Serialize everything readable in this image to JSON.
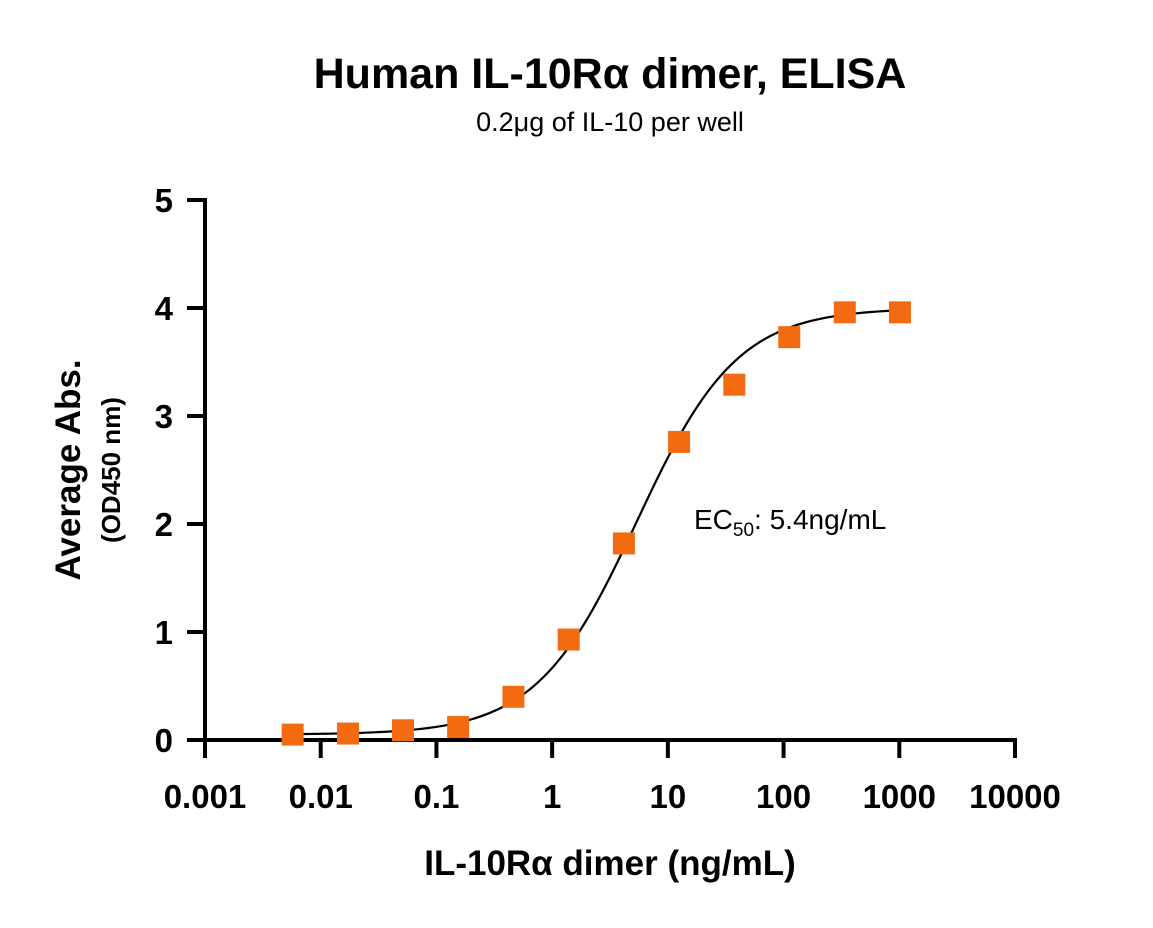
{
  "chart_data": {
    "type": "scatter",
    "title": "Human IL-10Rα dimer, ELISA",
    "subtitle": "0.2μg of IL-10 per well",
    "xlabel": "IL-10Rα dimer (ng/mL)",
    "ylabel": "Average Abs.",
    "ylabel_sub": "(OD450 nm)",
    "xscale": "log",
    "xlim": [
      0.001,
      10000
    ],
    "ylim": [
      0,
      5
    ],
    "x_ticks": [
      "0.001",
      "0.01",
      "0.1",
      "1",
      "10",
      "100",
      "1000",
      "10000"
    ],
    "y_ticks": [
      "0",
      "1",
      "2",
      "3",
      "4",
      "5"
    ],
    "grid": false,
    "legend": "none",
    "annotation": {
      "prefix": "EC",
      "subscript": "50",
      "suffix": ": 5.4ng/mL"
    },
    "series": [
      {
        "marker": "square",
        "color": "#F26B10",
        "x": [
          0.00572,
          0.0172,
          0.0514,
          0.154,
          0.463,
          1.39,
          4.17,
          12.5,
          37.5,
          112,
          338,
          1013
        ],
        "y": [
          0.05,
          0.06,
          0.09,
          0.12,
          0.4,
          0.93,
          1.82,
          2.76,
          3.29,
          3.73,
          3.96,
          3.96
        ]
      }
    ],
    "fit": {
      "model": "4PL",
      "bottom": 0.05,
      "top": 4.0,
      "ec50": 5.4,
      "hill": 1.0,
      "color": "#000000"
    }
  }
}
